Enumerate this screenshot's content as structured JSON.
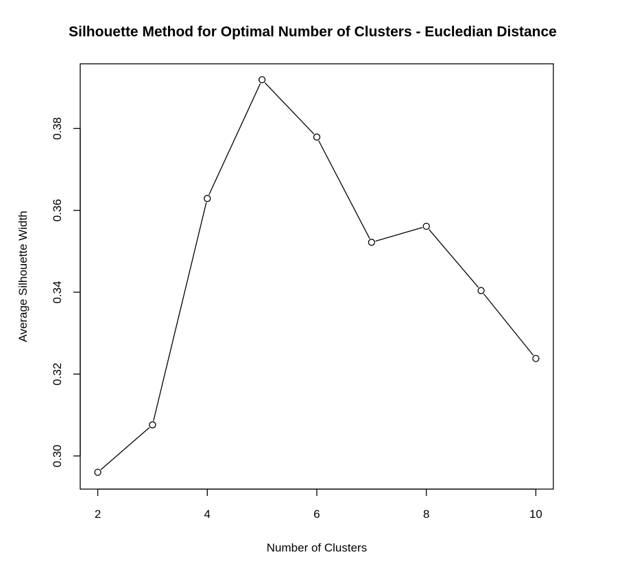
{
  "chart_data": {
    "type": "line",
    "title": "Silhouette Method for Optimal Number of Clusters - Eucledian Distance",
    "xlabel": "Number of Clusters",
    "ylabel": "Average Silhouette Width",
    "x": [
      2,
      3,
      4,
      5,
      6,
      7,
      8,
      9,
      10
    ],
    "series": [
      {
        "values": [
          0.296,
          0.3076,
          0.3629,
          0.3919,
          0.3779,
          0.3522,
          0.3561,
          0.3404,
          0.3238
        ]
      }
    ],
    "xlim": [
      1.68,
      10.32
    ],
    "ylim": [
      0.2919,
      0.3958
    ],
    "xticks": [
      2,
      4,
      6,
      8,
      10
    ],
    "xtick_labels": [
      "2",
      "4",
      "6",
      "8",
      "10"
    ],
    "yticks": [
      0.3,
      0.32,
      0.34,
      0.36,
      0.38
    ],
    "ytick_labels": [
      "0.30",
      "0.32",
      "0.34",
      "0.36",
      "0.38"
    ],
    "markers": "open-circle",
    "grid": false,
    "line_color": "#000000",
    "marker_fill": "#ffffff"
  }
}
